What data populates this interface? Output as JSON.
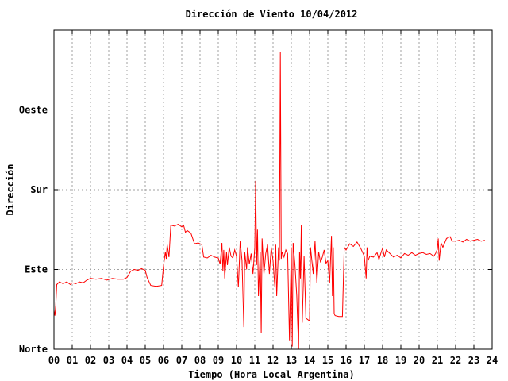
{
  "chart_data": {
    "type": "line",
    "title": "Dirección de Viento 10/04/2012",
    "xlabel": "Tiempo (Hora Local Argentina)",
    "ylabel": "Dirección",
    "xlim": [
      0,
      24
    ],
    "ylim": [
      0,
      360
    ],
    "x_ticks": [
      "00",
      "01",
      "02",
      "03",
      "04",
      "05",
      "06",
      "07",
      "08",
      "09",
      "10",
      "11",
      "12",
      "13",
      "14",
      "15",
      "16",
      "17",
      "18",
      "19",
      "20",
      "21",
      "22",
      "23",
      "24"
    ],
    "y_ticks": [
      {
        "value": 0,
        "label": "Norte"
      },
      {
        "value": 90,
        "label": "Este"
      },
      {
        "value": 180,
        "label": "Sur"
      },
      {
        "value": 270,
        "label": "Oeste"
      }
    ],
    "grid": true,
    "series": [
      {
        "color": "#ff0000",
        "points": [
          [
            0.0,
            44
          ],
          [
            0.05,
            38
          ],
          [
            0.1,
            50
          ],
          [
            0.15,
            73
          ],
          [
            0.3,
            76
          ],
          [
            0.5,
            74
          ],
          [
            0.7,
            76
          ],
          [
            0.9,
            73
          ],
          [
            1.0,
            75
          ],
          [
            1.2,
            74
          ],
          [
            1.4,
            76
          ],
          [
            1.6,
            75
          ],
          [
            1.8,
            78
          ],
          [
            2.0,
            80
          ],
          [
            2.3,
            79
          ],
          [
            2.6,
            80
          ],
          [
            2.9,
            78
          ],
          [
            3.2,
            80
          ],
          [
            3.5,
            79
          ],
          [
            3.8,
            79
          ],
          [
            4.0,
            81
          ],
          [
            4.2,
            88
          ],
          [
            4.4,
            90
          ],
          [
            4.6,
            89
          ],
          [
            4.8,
            91
          ],
          [
            5.0,
            89
          ],
          [
            5.1,
            81
          ],
          [
            5.3,
            72
          ],
          [
            5.6,
            71
          ],
          [
            5.9,
            72
          ],
          [
            6.0,
            94
          ],
          [
            6.1,
            110
          ],
          [
            6.15,
            102
          ],
          [
            6.2,
            118
          ],
          [
            6.3,
            104
          ],
          [
            6.4,
            140
          ],
          [
            6.6,
            139
          ],
          [
            6.8,
            141
          ],
          [
            7.0,
            138
          ],
          [
            7.1,
            140
          ],
          [
            7.2,
            132
          ],
          [
            7.3,
            134
          ],
          [
            7.5,
            131
          ],
          [
            7.7,
            119
          ],
          [
            7.9,
            120
          ],
          [
            8.1,
            118
          ],
          [
            8.2,
            104
          ],
          [
            8.4,
            103
          ],
          [
            8.6,
            106
          ],
          [
            8.8,
            104
          ],
          [
            9.0,
            103
          ],
          [
            9.1,
            96
          ],
          [
            9.2,
            120
          ],
          [
            9.25,
            88
          ],
          [
            9.3,
            112
          ],
          [
            9.35,
            80
          ],
          [
            9.45,
            110
          ],
          [
            9.5,
            95
          ],
          [
            9.6,
            115
          ],
          [
            9.7,
            105
          ],
          [
            9.8,
            103
          ],
          [
            9.9,
            112
          ],
          [
            10.0,
            105
          ],
          [
            10.1,
            70
          ],
          [
            10.2,
            122
          ],
          [
            10.3,
            100
          ],
          [
            10.4,
            25
          ],
          [
            10.45,
            110
          ],
          [
            10.55,
            90
          ],
          [
            10.6,
            115
          ],
          [
            10.7,
            96
          ],
          [
            10.8,
            108
          ],
          [
            10.9,
            85
          ],
          [
            11.0,
            115
          ],
          [
            11.05,
            190
          ],
          [
            11.1,
            95
          ],
          [
            11.15,
            135
          ],
          [
            11.2,
            60
          ],
          [
            11.3,
            110
          ],
          [
            11.35,
            18
          ],
          [
            11.4,
            125
          ],
          [
            11.5,
            85
          ],
          [
            11.6,
            108
          ],
          [
            11.7,
            118
          ],
          [
            11.8,
            85
          ],
          [
            11.9,
            115
          ],
          [
            12.0,
            100
          ],
          [
            12.1,
            70
          ],
          [
            12.15,
            118
          ],
          [
            12.2,
            60
          ],
          [
            12.3,
            115
          ],
          [
            12.35,
            100
          ],
          [
            12.4,
            335
          ],
          [
            12.45,
            102
          ],
          [
            12.5,
            110
          ],
          [
            12.6,
            104
          ],
          [
            12.7,
            112
          ],
          [
            12.8,
            108
          ],
          [
            12.9,
            10
          ],
          [
            13.0,
            115
          ],
          [
            13.05,
            3
          ],
          [
            13.1,
            120
          ],
          [
            13.2,
            95
          ],
          [
            13.3,
            60
          ],
          [
            13.4,
            0
          ],
          [
            13.45,
            110
          ],
          [
            13.5,
            80
          ],
          [
            13.55,
            140
          ],
          [
            13.6,
            30
          ],
          [
            13.7,
            105
          ],
          [
            13.8,
            35
          ],
          [
            14.0,
            32
          ],
          [
            14.05,
            115
          ],
          [
            14.2,
            85
          ],
          [
            14.3,
            122
          ],
          [
            14.4,
            75
          ],
          [
            14.5,
            110
          ],
          [
            14.6,
            98
          ],
          [
            14.7,
            104
          ],
          [
            14.8,
            112
          ],
          [
            14.9,
            97
          ],
          [
            15.0,
            100
          ],
          [
            15.1,
            75
          ],
          [
            15.2,
            128
          ],
          [
            15.25,
            60
          ],
          [
            15.3,
            115
          ],
          [
            15.35,
            40
          ],
          [
            15.4,
            38
          ],
          [
            15.6,
            37
          ],
          [
            15.8,
            37
          ],
          [
            15.9,
            115
          ],
          [
            16.0,
            112
          ],
          [
            16.2,
            119
          ],
          [
            16.4,
            116
          ],
          [
            16.6,
            121
          ],
          [
            16.8,
            114
          ],
          [
            17.0,
            105
          ],
          [
            17.1,
            80
          ],
          [
            17.15,
            115
          ],
          [
            17.2,
            100
          ],
          [
            17.3,
            105
          ],
          [
            17.5,
            104
          ],
          [
            17.7,
            109
          ],
          [
            17.8,
            101
          ],
          [
            17.9,
            108
          ],
          [
            18.0,
            114
          ],
          [
            18.1,
            104
          ],
          [
            18.2,
            112
          ],
          [
            18.4,
            108
          ],
          [
            18.6,
            104
          ],
          [
            18.8,
            106
          ],
          [
            19.0,
            103
          ],
          [
            19.2,
            108
          ],
          [
            19.4,
            106
          ],
          [
            19.6,
            109
          ],
          [
            19.8,
            106
          ],
          [
            20.0,
            108
          ],
          [
            20.2,
            109
          ],
          [
            20.4,
            107
          ],
          [
            20.6,
            108
          ],
          [
            20.8,
            105
          ],
          [
            20.9,
            108
          ],
          [
            21.0,
            113
          ],
          [
            21.05,
            125
          ],
          [
            21.1,
            100
          ],
          [
            21.2,
            120
          ],
          [
            21.3,
            115
          ],
          [
            21.5,
            125
          ],
          [
            21.7,
            127
          ],
          [
            21.8,
            122
          ],
          [
            22.0,
            122
          ],
          [
            22.2,
            123
          ],
          [
            22.4,
            121
          ],
          [
            22.6,
            124
          ],
          [
            22.8,
            122
          ],
          [
            23.0,
            123
          ],
          [
            23.2,
            124
          ],
          [
            23.4,
            122
          ],
          [
            23.6,
            123
          ]
        ]
      }
    ]
  }
}
